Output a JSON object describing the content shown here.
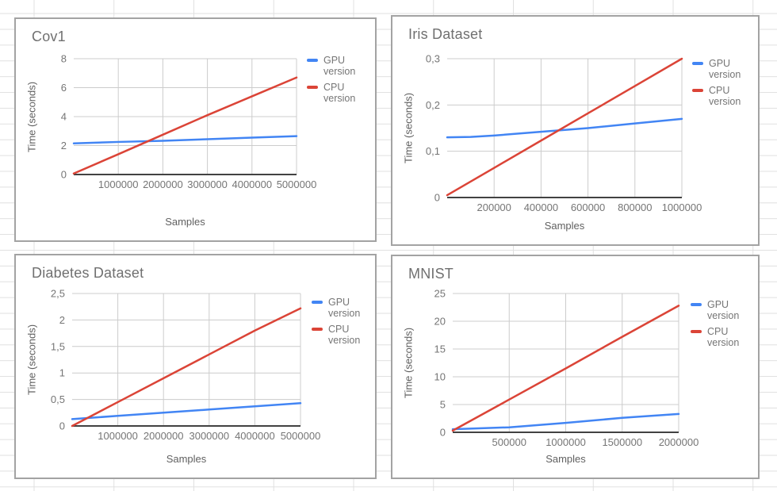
{
  "palette": {
    "gpu_blue": "#4285f4",
    "cpu_red": "#db4437",
    "grid_color": "#cccccc",
    "baseline_color": "#424242",
    "tick_text": "#757575",
    "title_text": "#707070"
  },
  "chart_data": [
    {
      "type": "line",
      "title": "Cov1",
      "xlabel": "Samples",
      "ylabel": "Time (seconds)",
      "xlim": [
        0,
        5000000
      ],
      "ylim": [
        0,
        8
      ],
      "grid": true,
      "legend_position": "right",
      "x_ticks": {
        "values": [
          1000000,
          2000000,
          3000000,
          4000000,
          5000000
        ],
        "labels": [
          "1000000",
          "2000000",
          "3000000",
          "4000000",
          "5000000"
        ]
      },
      "y_ticks": {
        "values": [
          0,
          2,
          4,
          6,
          8
        ],
        "labels": [
          "0",
          "2",
          "4",
          "6",
          "8"
        ]
      },
      "series": [
        {
          "name": "GPU version",
          "color": "#4285f4",
          "x": [
            0,
            1000000,
            2000000,
            3000000,
            4000000,
            5000000
          ],
          "y": [
            2.15,
            2.25,
            2.33,
            2.44,
            2.55,
            2.65
          ]
        },
        {
          "name": "CPU version",
          "color": "#db4437",
          "x": [
            0,
            1000000,
            2000000,
            3000000,
            4000000,
            5000000
          ],
          "y": [
            0.07,
            1.4,
            2.75,
            4.1,
            5.4,
            6.7
          ]
        }
      ]
    },
    {
      "type": "line",
      "title": "Iris Dataset",
      "xlabel": "Samples",
      "ylabel": "Time (seconds)",
      "xlim": [
        0,
        1000000
      ],
      "ylim": [
        0,
        0.3
      ],
      "grid": true,
      "legend_position": "right",
      "x_ticks": {
        "values": [
          200000,
          400000,
          600000,
          800000,
          1000000
        ],
        "labels": [
          "200000",
          "400000",
          "600000",
          "800000",
          "1000000"
        ]
      },
      "y_ticks": {
        "values": [
          0,
          0.1,
          0.2,
          0.3
        ],
        "labels": [
          "0",
          "0,1",
          "0,2",
          "0,3"
        ]
      },
      "series": [
        {
          "name": "GPU version",
          "color": "#4285f4",
          "x": [
            0,
            100000,
            200000,
            400000,
            600000,
            800000,
            1000000
          ],
          "y": [
            0.13,
            0.131,
            0.134,
            0.142,
            0.15,
            0.16,
            0.17
          ]
        },
        {
          "name": "CPU version",
          "color": "#db4437",
          "x": [
            0,
            200000,
            400000,
            600000,
            800000,
            1000000
          ],
          "y": [
            0.005,
            0.064,
            0.123,
            0.182,
            0.241,
            0.3
          ]
        }
      ]
    },
    {
      "type": "line",
      "title": "Diabetes Dataset",
      "xlabel": "Samples",
      "ylabel": "Time (seconds)",
      "xlim": [
        0,
        5000000
      ],
      "ylim": [
        0,
        2.5
      ],
      "grid": true,
      "legend_position": "right",
      "x_ticks": {
        "values": [
          1000000,
          2000000,
          3000000,
          4000000,
          5000000
        ],
        "labels": [
          "1000000",
          "2000000",
          "3000000",
          "4000000",
          "5000000"
        ]
      },
      "y_ticks": {
        "values": [
          0,
          0.5,
          1,
          1.5,
          2,
          2.5
        ],
        "labels": [
          "0",
          "0,5",
          "1",
          "1,5",
          "2",
          "2,5"
        ]
      },
      "series": [
        {
          "name": "GPU version",
          "color": "#4285f4",
          "x": [
            0,
            1000000,
            2000000,
            3000000,
            4000000,
            5000000
          ],
          "y": [
            0.13,
            0.19,
            0.25,
            0.31,
            0.37,
            0.43
          ]
        },
        {
          "name": "CPU version",
          "color": "#db4437",
          "x": [
            0,
            1000000,
            2000000,
            3000000,
            4000000,
            5000000
          ],
          "y": [
            0.0,
            0.45,
            0.9,
            1.35,
            1.8,
            2.22
          ]
        }
      ]
    },
    {
      "type": "line",
      "title": "MNIST",
      "xlabel": "Samples",
      "ylabel": "Time (seconds)",
      "xlim": [
        0,
        2000000
      ],
      "ylim": [
        0,
        25
      ],
      "grid": true,
      "legend_position": "right",
      "x_ticks": {
        "values": [
          500000,
          1000000,
          1500000,
          2000000
        ],
        "labels": [
          "500000",
          "1000000",
          "1500000",
          "2000000"
        ]
      },
      "y_ticks": {
        "values": [
          0,
          5,
          10,
          15,
          20,
          25
        ],
        "labels": [
          "0",
          "5",
          "10",
          "15",
          "20",
          "25"
        ]
      },
      "series": [
        {
          "name": "GPU version",
          "color": "#4285f4",
          "x": [
            0,
            500000,
            1000000,
            1500000,
            2000000
          ],
          "y": [
            0.55,
            0.9,
            1.7,
            2.6,
            3.3
          ]
        },
        {
          "name": "CPU version",
          "color": "#db4437",
          "x": [
            0,
            500000,
            1000000,
            1500000,
            2000000
          ],
          "y": [
            0.3,
            5.9,
            11.5,
            17.2,
            22.8
          ]
        }
      ]
    }
  ]
}
